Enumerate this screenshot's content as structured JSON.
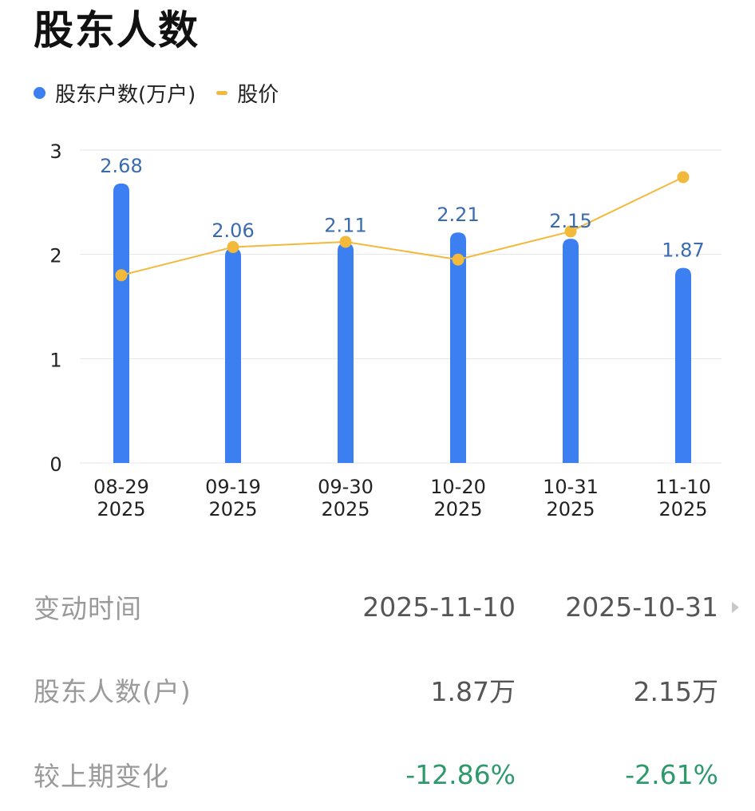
{
  "page": {
    "title": "股东人数"
  },
  "legend": {
    "bar_label": "股东户数(万户)",
    "line_label": "股价",
    "bar_color": "#3b7ff0",
    "line_color": "#f2b93b"
  },
  "chart_data": {
    "type": "bar",
    "categories": [
      "08-29\n2025",
      "09-19\n2025",
      "09-30\n2025",
      "10-20\n2025",
      "10-31\n2025",
      "11-10\n2025"
    ],
    "category_dates": [
      "08-29",
      "09-19",
      "09-30",
      "10-20",
      "10-31",
      "11-10"
    ],
    "category_years": [
      "2025",
      "2025",
      "2025",
      "2025",
      "2025",
      "2025"
    ],
    "series": [
      {
        "name": "股东户数(万户)",
        "type": "bar",
        "values": [
          2.68,
          2.06,
          2.11,
          2.21,
          2.15,
          1.87
        ],
        "value_labels": [
          "2.68",
          "2.06",
          "2.11",
          "2.21",
          "2.15",
          "1.87"
        ]
      },
      {
        "name": "股价",
        "type": "line",
        "values": [
          1.8,
          2.07,
          2.12,
          1.95,
          2.22,
          2.74
        ]
      }
    ],
    "y_ticks": [
      "0",
      "1",
      "2",
      "3"
    ],
    "ylim": [
      0,
      3
    ],
    "grid": true,
    "legend_position": "top-left"
  },
  "table": {
    "rows": [
      {
        "label": "变动时间",
        "v1": "2025-11-10",
        "v2": "2025-10-31"
      },
      {
        "label": "股东人数(户)",
        "v1": "1.87万",
        "v2": "2.15万"
      },
      {
        "label": "较上期变化",
        "v1": "-12.86%",
        "v2": "-2.61%"
      }
    ],
    "change_color": "#2e9a6b"
  }
}
